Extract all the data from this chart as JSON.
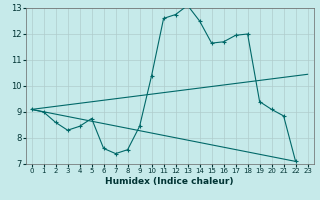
{
  "title": "",
  "xlabel": "Humidex (Indice chaleur)",
  "xlim": [
    -0.5,
    23.5
  ],
  "ylim": [
    7,
    13
  ],
  "yticks": [
    7,
    8,
    9,
    10,
    11,
    12,
    13
  ],
  "xticks": [
    0,
    1,
    2,
    3,
    4,
    5,
    6,
    7,
    8,
    9,
    10,
    11,
    12,
    13,
    14,
    15,
    16,
    17,
    18,
    19,
    20,
    21,
    22,
    23
  ],
  "background_color": "#c6eaea",
  "grid_color": "#b0cccc",
  "line_color": "#006868",
  "curve": {
    "x": [
      0,
      1,
      2,
      3,
      4,
      5,
      6,
      7,
      8,
      9,
      10,
      11,
      12,
      13,
      14,
      15,
      16,
      17,
      18,
      19,
      20,
      21,
      22
    ],
    "y": [
      9.1,
      9.0,
      8.6,
      8.3,
      8.45,
      8.75,
      7.6,
      7.4,
      7.55,
      8.45,
      10.4,
      12.6,
      12.75,
      13.1,
      12.5,
      11.65,
      11.7,
      11.95,
      12.0,
      9.4,
      9.1,
      8.85,
      7.1
    ]
  },
  "upper_line": {
    "x": [
      0,
      23
    ],
    "y": [
      9.1,
      10.45
    ]
  },
  "lower_line": {
    "x": [
      0,
      22
    ],
    "y": [
      9.1,
      7.1
    ]
  }
}
